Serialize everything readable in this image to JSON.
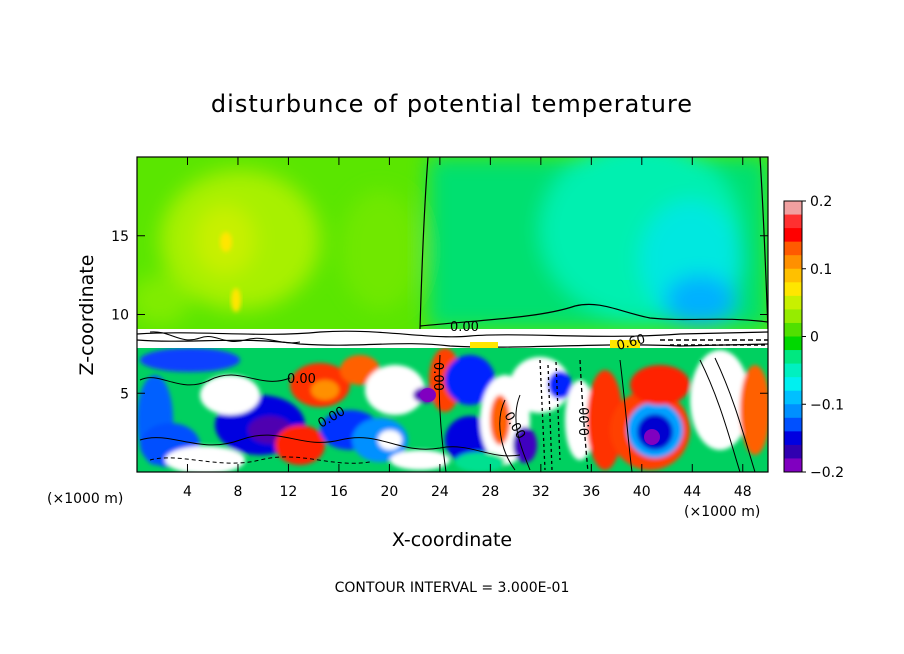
{
  "chart_data": {
    "type": "heatmap",
    "title": "disturbunce of potential temperature",
    "xlabel": "X-coordinate",
    "ylabel": "Z-coordinate",
    "x_unit": "(×1000 m)",
    "x_unit_right": "(×1000 m)",
    "xlim": [
      0,
      50
    ],
    "ylim": [
      0,
      20
    ],
    "x_ticks": [
      "4",
      "8",
      "12",
      "16",
      "20",
      "24",
      "28",
      "32",
      "36",
      "40",
      "44",
      "48"
    ],
    "x_tick_values": [
      4,
      8,
      12,
      16,
      20,
      24,
      28,
      32,
      36,
      40,
      44,
      48
    ],
    "y_ticks": [
      "5",
      "10",
      "15"
    ],
    "y_tick_values": [
      5,
      10,
      15
    ],
    "colorbar": {
      "range": [
        -0.2,
        0.2
      ],
      "tick_labels": [
        "0.2",
        "0.1",
        "0",
        "−0.1",
        "−0.2"
      ],
      "tick_values": [
        0.2,
        0.1,
        0,
        -0.1,
        -0.2
      ],
      "colors": [
        "#f0a0a0",
        "#ff3030",
        "#ff0000",
        "#ff5a00",
        "#ff9000",
        "#ffc000",
        "#ffe600",
        "#c8f000",
        "#96ec00",
        "#50e000",
        "#00d800",
        "#00e880",
        "#00f0c0",
        "#00f0f0",
        "#00c0ff",
        "#0090ff",
        "#0050ff",
        "#0000e0",
        "#3000b0",
        "#8000c0"
      ]
    },
    "contour_labels": [
      "0.00",
      "0.00",
      "0.00",
      "0.00",
      "0.00",
      "0.00",
      "0.60"
    ],
    "contour_interval_text": "CONTOUR INTERVAL = 3.000E-01"
  }
}
